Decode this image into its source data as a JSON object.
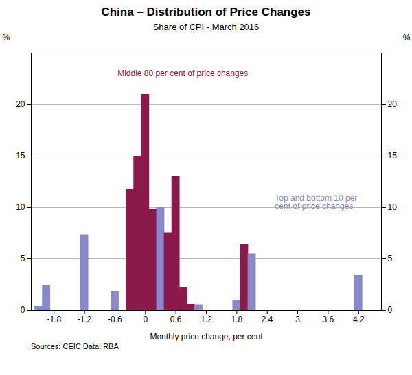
{
  "chart_data": {
    "type": "bar",
    "title": "China – Distribution of Price Changes",
    "subtitle": "Share of CPI - March 2016",
    "xlabel": "Monthly price change, per cent",
    "ylabel": "%",
    "y2label": "%",
    "source": "Sources: CEIC Data; RBA",
    "x": [
      -2.1,
      -1.95,
      -1.2,
      -0.6,
      -0.3,
      -0.15,
      0.0,
      0.15,
      0.3,
      0.45,
      0.6,
      0.75,
      0.9,
      1.05,
      1.8,
      1.95,
      2.1,
      4.2
    ],
    "values": [
      0.4,
      2.4,
      7.3,
      1.8,
      11.8,
      15.0,
      21.0,
      9.8,
      10.0,
      7.5,
      13.0,
      2.2,
      0.6,
      0.5,
      1.0,
      6.4,
      5.5,
      3.4
    ],
    "colors": [
      "#8888CC",
      "#8888CC",
      "#8888CC",
      "#8888CC",
      "#8B1A4A",
      "#8B1A4A",
      "#8B1A4A",
      "#8B1A4A",
      "#8888CC",
      "#8B1A4A",
      "#8B1A4A",
      "#8B1A4A",
      "#8B1A4A",
      "#8888CC",
      "#8888CC",
      "#8B1A4A",
      "#8888CC",
      "#8888CC"
    ],
    "xlim": [
      -2.25,
      4.65
    ],
    "xticks": [
      -1.8,
      -1.2,
      -0.6,
      0,
      0.6,
      1.2,
      1.8,
      2.4,
      3.0,
      3.6,
      4.2
    ],
    "ylim": [
      0,
      25
    ],
    "yticks": [
      0,
      5,
      10,
      15,
      20
    ],
    "y2lim": [
      0,
      25
    ],
    "y2ticks": [
      0,
      5,
      10,
      15,
      20
    ],
    "grid": true,
    "annotations": [
      {
        "text": "Middle 80 per cent of price changes",
        "x": -0.55,
        "y": 23.0,
        "color": "#8B1A4A"
      },
      {
        "text": "Top and bottom 10 per\ncent of price changes",
        "x": 2.55,
        "y": 10.5,
        "color": "#8888CC"
      }
    ]
  }
}
